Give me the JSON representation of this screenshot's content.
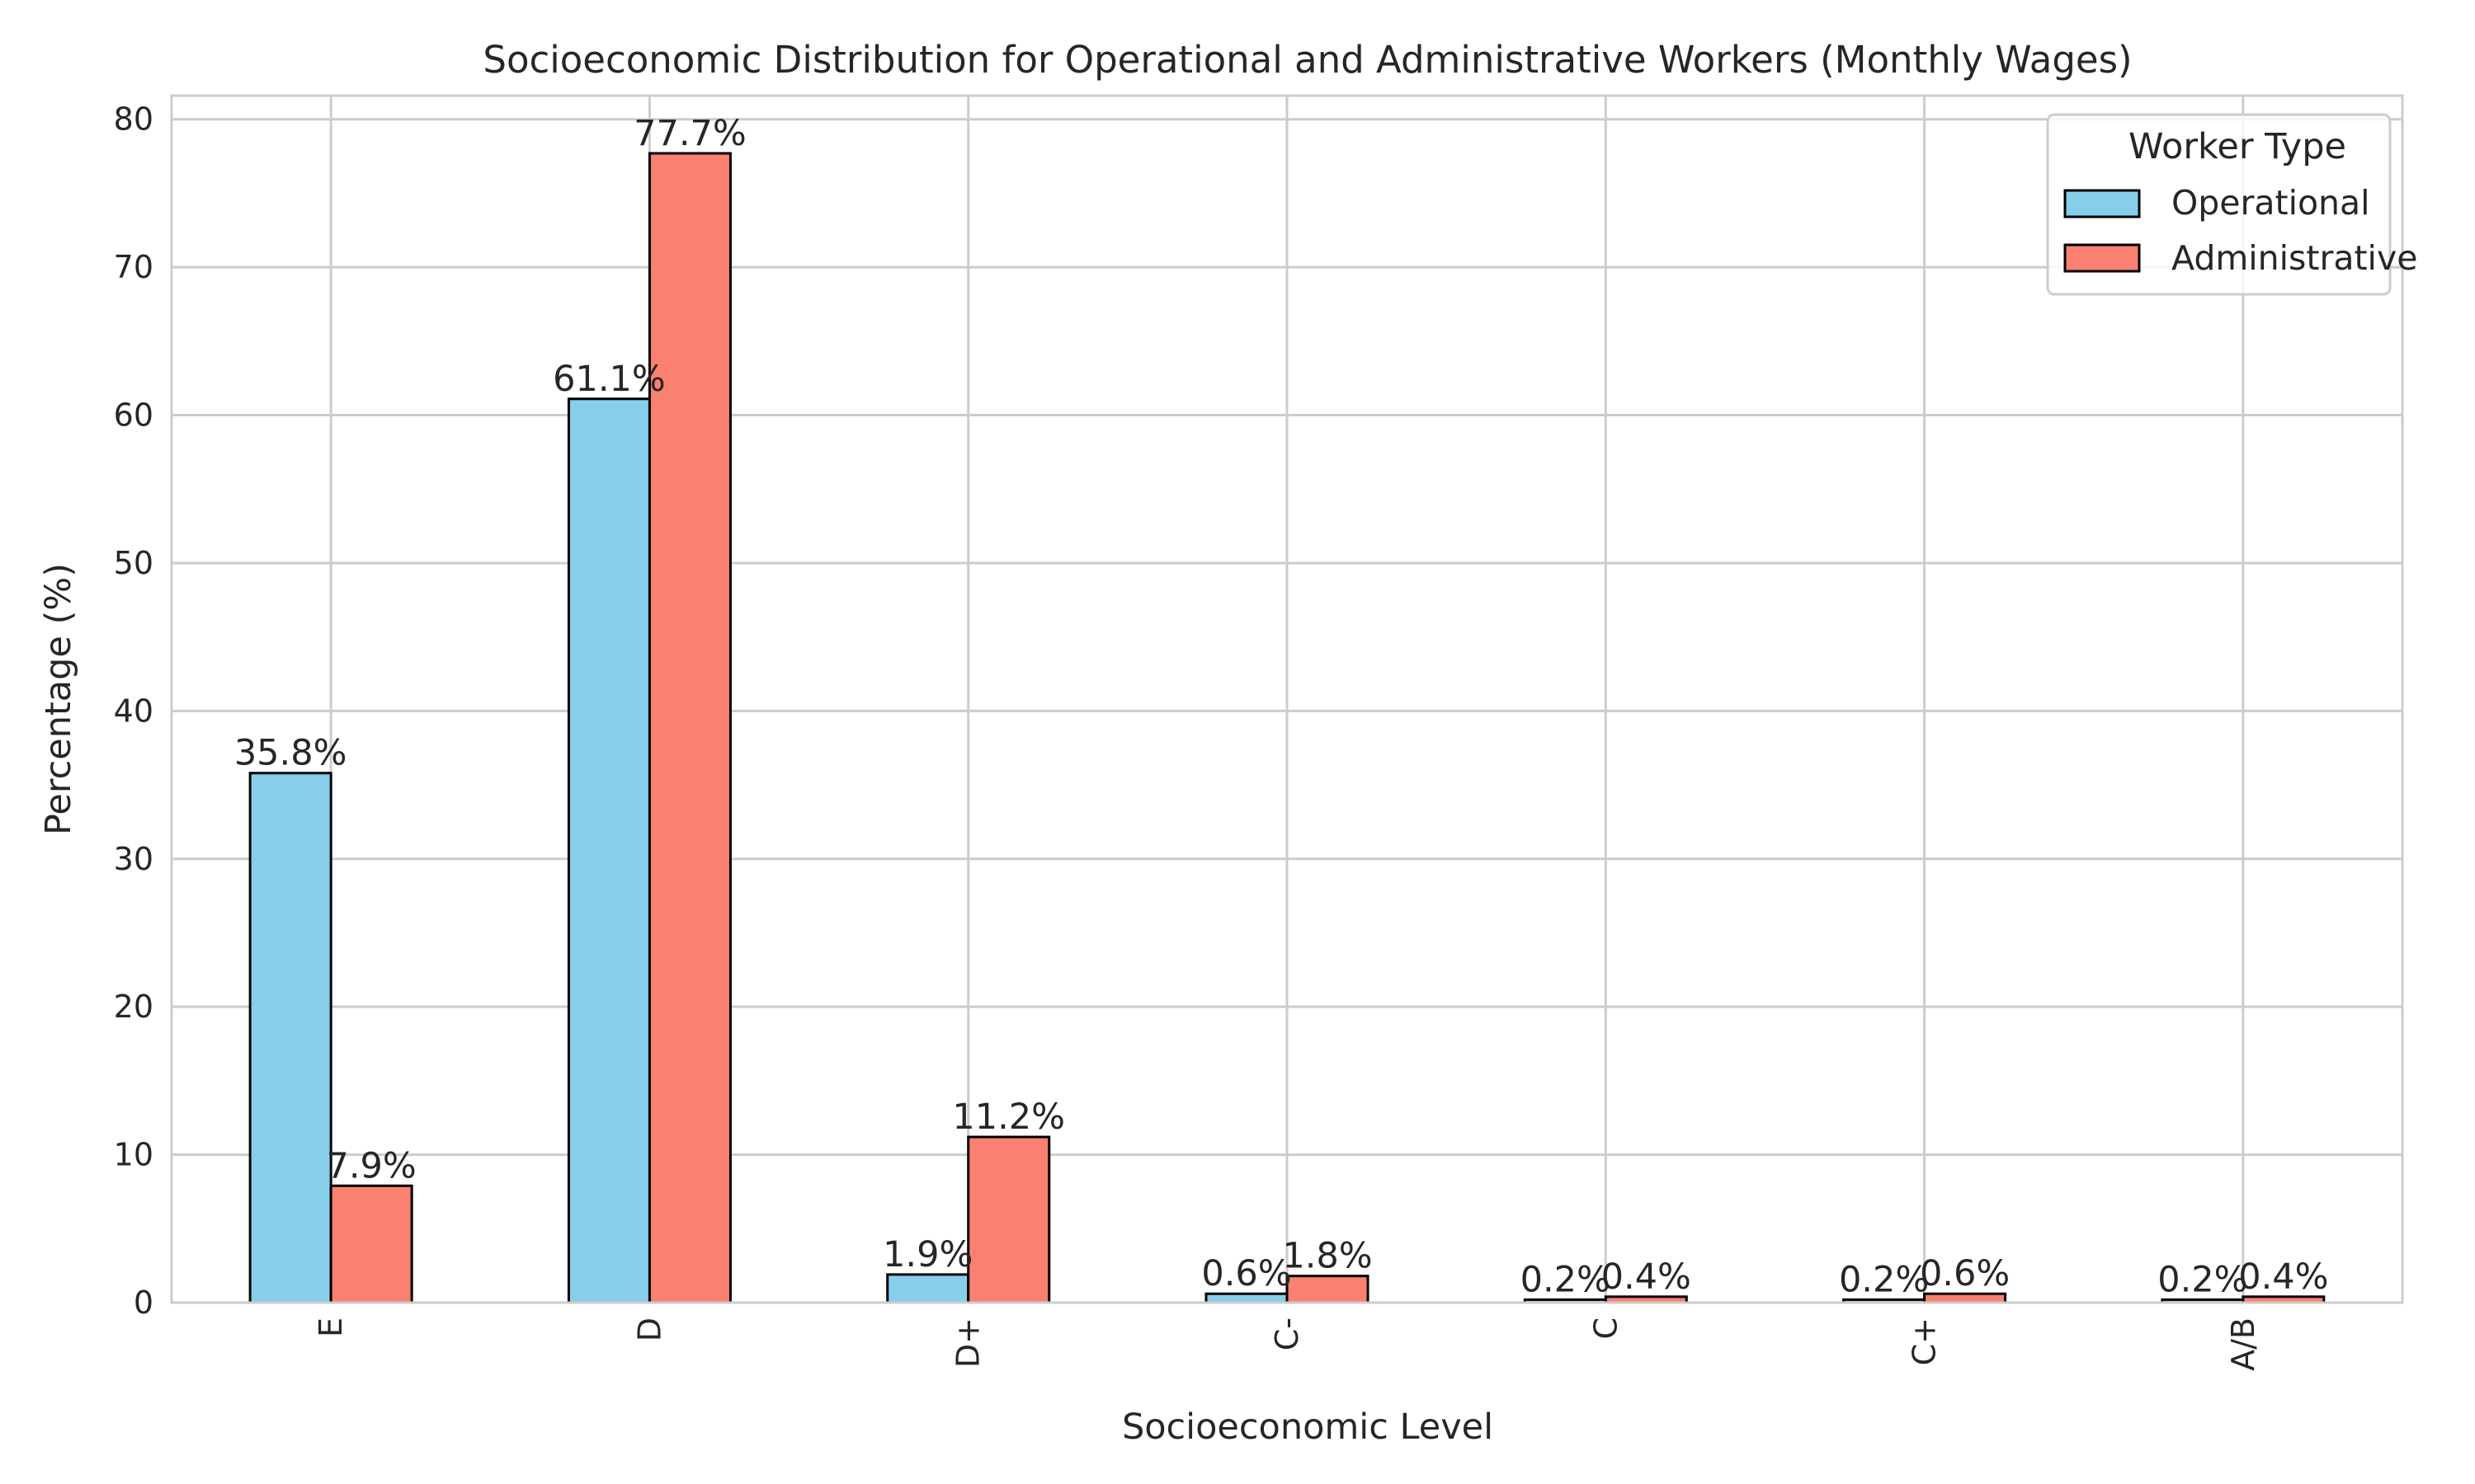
{
  "chart_data": {
    "type": "bar",
    "title": "Socioeconomic Distribution for Operational and Administrative Workers (Monthly Wages)",
    "xlabel": "Socioeconomic Level",
    "ylabel": "Percentage (%)",
    "categories": [
      "E",
      "D",
      "D+",
      "C-",
      "C",
      "C+",
      "A/B"
    ],
    "series": [
      {
        "name": "Operational",
        "color": "#87CEEB",
        "values": [
          35.8,
          61.1,
          1.9,
          0.6,
          0.2,
          0.2,
          0.2
        ],
        "labels": [
          "35.8%",
          "61.1%",
          "1.9%",
          "0.6%",
          "0.2%",
          "0.2%",
          "0.2%"
        ]
      },
      {
        "name": "Administrative",
        "color": "#FA8072",
        "values": [
          7.9,
          77.7,
          11.2,
          1.8,
          0.4,
          0.6,
          0.4
        ],
        "labels": [
          "7.9%",
          "77.7%",
          "11.2%",
          "1.8%",
          "0.4%",
          "0.6%",
          "0.4%"
        ]
      }
    ],
    "ylim": [
      0,
      81.6
    ],
    "yticks": [
      0,
      10,
      20,
      30,
      40,
      50,
      60,
      70,
      80
    ],
    "grid": true,
    "legend": {
      "title": "Worker Type",
      "placement": "top-right"
    }
  }
}
